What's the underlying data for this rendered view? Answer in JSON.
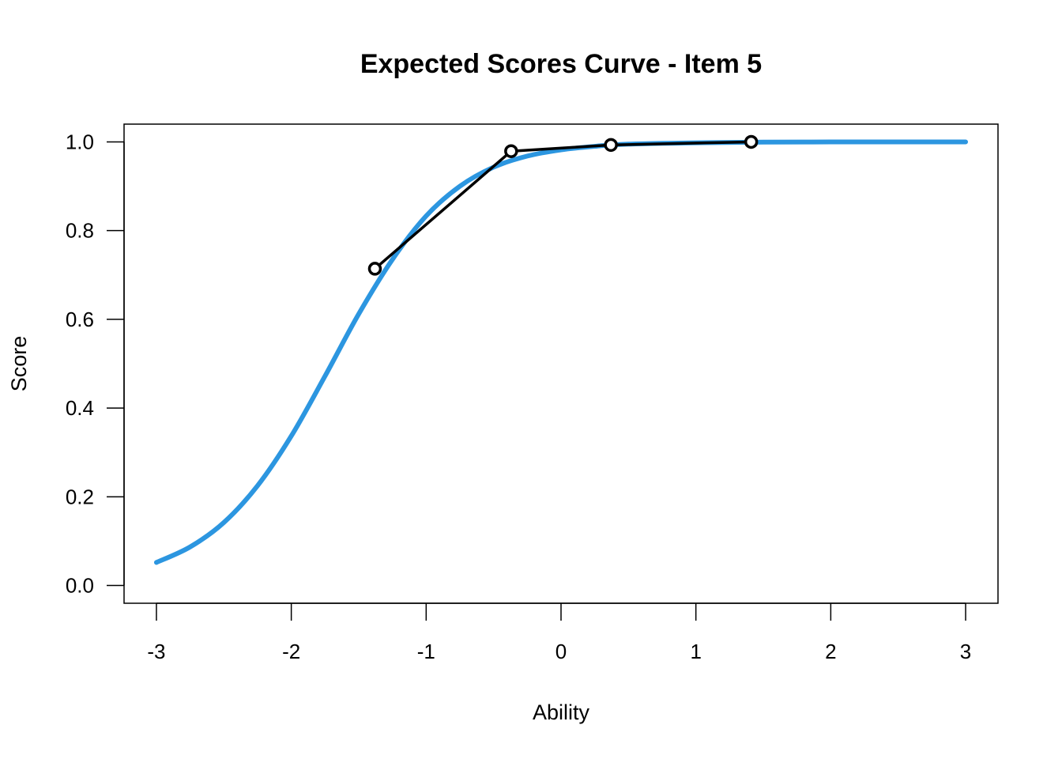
{
  "chart_data": {
    "type": "line",
    "title": "Expected Scores Curve - Item  5",
    "xlabel": "Ability",
    "ylabel": "Score",
    "xlim": [
      -3.24,
      3.24
    ],
    "ylim": [
      -0.04,
      1.04
    ],
    "x_ticks": [
      -3,
      -2,
      -1,
      0,
      1,
      2,
      3
    ],
    "x_tick_labels": [
      "-3",
      "-2",
      "-1",
      "0",
      "1",
      "2",
      "3"
    ],
    "y_ticks": [
      0.0,
      0.2,
      0.4,
      0.6,
      0.8,
      1.0
    ],
    "y_tick_labels": [
      "0.0",
      "0.2",
      "0.4",
      "0.6",
      "0.8",
      "1.0"
    ],
    "grid": false,
    "legend": "none",
    "series": [
      {
        "kind": "curve",
        "color": "#2C96E0",
        "x": [
          -3.0,
          -2.75,
          -2.5,
          -2.25,
          -2.0,
          -1.75,
          -1.5,
          -1.25,
          -1.0,
          -0.75,
          -0.5,
          -0.25,
          0.0,
          0.25,
          0.5,
          1.0,
          1.5,
          2.0,
          2.5,
          3.0
        ],
        "values": [
          0.052,
          0.087,
          0.142,
          0.225,
          0.337,
          0.472,
          0.612,
          0.735,
          0.833,
          0.9,
          0.943,
          0.968,
          0.982,
          0.99,
          0.995,
          0.998,
          0.9994,
          0.9998,
          0.9999,
          1.0
        ]
      },
      {
        "kind": "observed",
        "color": "#000000",
        "x": [
          -1.38,
          -0.37,
          0.37,
          1.41
        ],
        "values": [
          0.714,
          0.979,
          0.993,
          1.0
        ]
      }
    ]
  }
}
